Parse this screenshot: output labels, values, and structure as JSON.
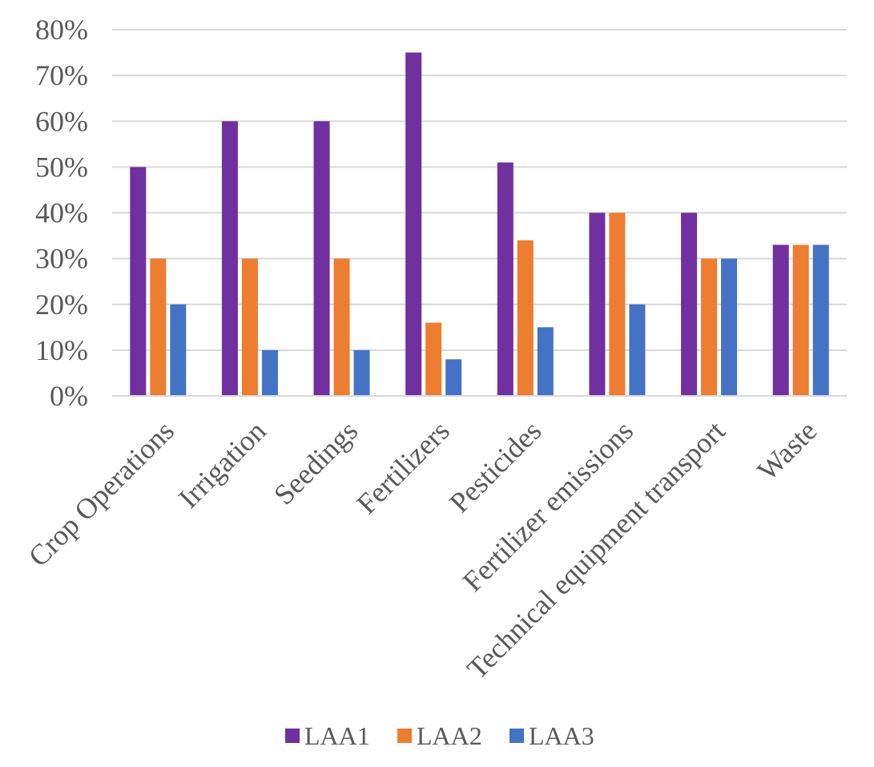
{
  "chart_data": {
    "type": "bar",
    "title": "",
    "xlabel": "",
    "ylabel": "",
    "ylim": [
      0,
      80
    ],
    "yticks": [
      "0%",
      "10%",
      "20%",
      "30%",
      "40%",
      "50%",
      "60%",
      "70%",
      "80%"
    ],
    "grid": true,
    "legend_position": "bottom",
    "categories": [
      "Crop Operations",
      "Irrigation",
      "Seedings",
      "Fertilizers",
      "Pesticides",
      "Fertilizer emissions",
      "Technical equipment transport",
      "Waste"
    ],
    "series": [
      {
        "name": "LAA1",
        "color": "#7030A0",
        "values": [
          50,
          60,
          60,
          75,
          51,
          40,
          40,
          33
        ]
      },
      {
        "name": "LAA2",
        "color": "#ED7D31",
        "values": [
          30,
          30,
          30,
          16,
          34,
          40,
          30,
          33
        ]
      },
      {
        "name": "LAA3",
        "color": "#4472C4",
        "values": [
          20,
          10,
          10,
          8,
          15,
          20,
          30,
          33
        ]
      }
    ]
  }
}
